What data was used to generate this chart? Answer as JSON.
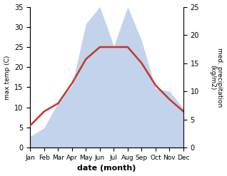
{
  "months": [
    "Jan",
    "Feb",
    "Mar",
    "Apr",
    "May",
    "Jun",
    "Jul",
    "Aug",
    "Sep",
    "Oct",
    "Nov",
    "Dec"
  ],
  "month_indices": [
    0,
    1,
    2,
    3,
    4,
    5,
    6,
    7,
    8,
    9,
    10,
    11
  ],
  "temperature": [
    5.5,
    9.0,
    11.0,
    16.0,
    22.0,
    25.0,
    25.0,
    25.0,
    21.0,
    15.5,
    12.0,
    9.0
  ],
  "precipitation": [
    2.0,
    3.5,
    8.0,
    11.0,
    22.0,
    25.0,
    18.0,
    25.0,
    19.0,
    10.5,
    10.0,
    7.0
  ],
  "temp_color": "#c0392b",
  "precip_color": "#b8cce8",
  "temp_ylim": [
    0,
    35
  ],
  "precip_ylim": [
    0,
    25
  ],
  "temp_yticks": [
    0,
    5,
    10,
    15,
    20,
    25,
    30,
    35
  ],
  "precip_yticks": [
    0,
    5,
    10,
    15,
    20,
    25
  ],
  "xlabel": "date (month)",
  "ylabel_left": "max temp (C)",
  "ylabel_right": "med. precipitation\n(kg/m2)",
  "figsize": [
    3.18,
    2.47
  ],
  "dpi": 100,
  "linewidth": 1.8
}
